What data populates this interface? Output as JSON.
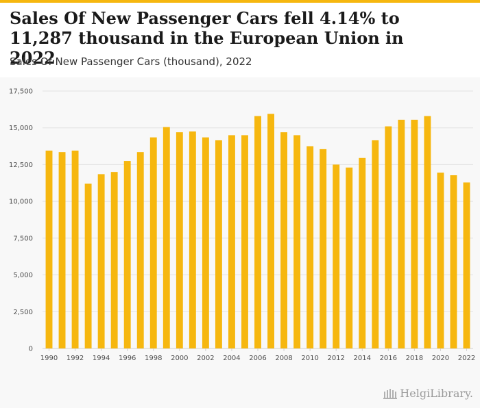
{
  "header": {
    "title": "Sales Of New Passenger Cars fell 4.14% to 11,287 thousand in the European Union in 2022",
    "subtitle": "Sales Of New Passenger Cars (thousand), 2022"
  },
  "branding": {
    "watermark": "HelgiLibrary."
  },
  "colors": {
    "bar": "#f6b70f",
    "accent": "#f6b70f",
    "grid": "#e2e2e2"
  },
  "chart_data": {
    "type": "bar",
    "title": "Sales Of New Passenger Cars fell 4.14% to 11,287 thousand in the European Union in 2022",
    "subtitle": "Sales Of New Passenger Cars (thousand), 2022",
    "xlabel": "",
    "ylabel": "",
    "ylim": [
      0,
      17500
    ],
    "grid": true,
    "yticks": [
      0,
      2500,
      5000,
      7500,
      10000,
      12500,
      15000,
      17500
    ],
    "ytick_labels": [
      "0",
      "2,500",
      "5,000",
      "7,500",
      "10,000",
      "12,500",
      "15,000",
      "17,500"
    ],
    "categories": [
      "1990",
      "1991",
      "1992",
      "1993",
      "1994",
      "1995",
      "1996",
      "1997",
      "1998",
      "1999",
      "2000",
      "2001",
      "2002",
      "2003",
      "2004",
      "2005",
      "2006",
      "2007",
      "2008",
      "2009",
      "2010",
      "2011",
      "2012",
      "2013",
      "2014",
      "2015",
      "2016",
      "2017",
      "2018",
      "2019",
      "2020",
      "2021",
      "2022"
    ],
    "xtick_labels": [
      "1990",
      "1992",
      "1994",
      "1996",
      "1998",
      "2000",
      "2002",
      "2004",
      "2006",
      "2008",
      "2010",
      "2012",
      "2014",
      "2016",
      "2018",
      "2020",
      "2022"
    ],
    "values": [
      13450,
      13350,
      13450,
      11200,
      11850,
      12000,
      12750,
      13350,
      14350,
      15050,
      14700,
      14750,
      14350,
      14150,
      14500,
      14500,
      15800,
      15950,
      14700,
      14500,
      13750,
      13550,
      12500,
      12300,
      12950,
      14150,
      15100,
      15550,
      15550,
      15800,
      11950,
      11775,
      11287
    ]
  }
}
